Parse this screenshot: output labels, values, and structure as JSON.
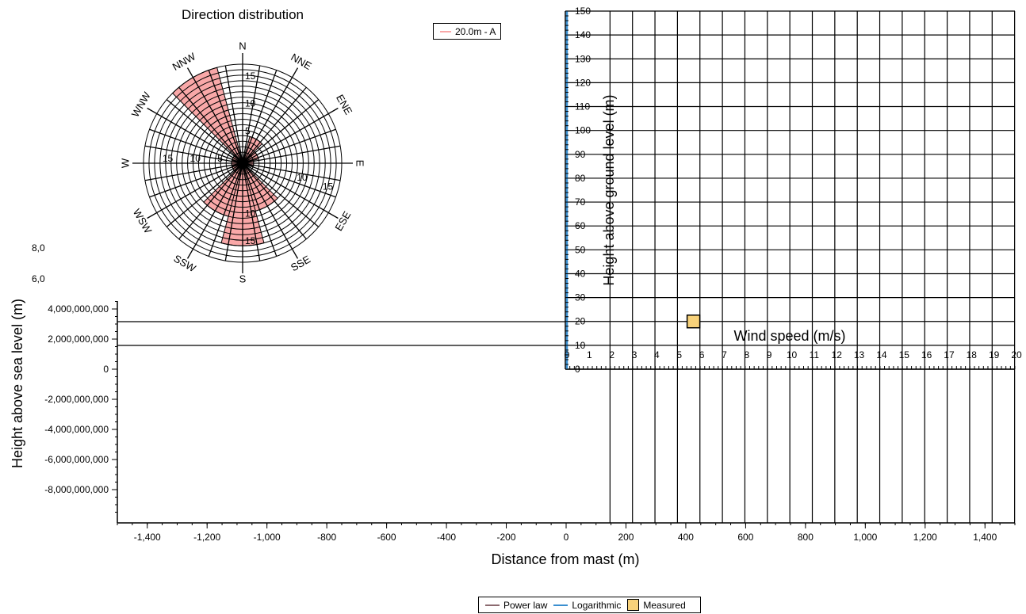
{
  "colors": {
    "rose_fill": "#F9A8A8",
    "logarithmic": "#3A8FD0",
    "power_law": "#8C6A6F",
    "measured_fill": "#F8D27A",
    "grid": "#000000"
  },
  "rose_legend": {
    "label": "20.0m - A"
  },
  "bottom_legend": {
    "power_law": "Power law",
    "logarithmic": "Logarithmic",
    "measured": "Measured"
  },
  "clipped_labels": {
    "top": "8,0",
    "second": "6,0"
  },
  "chart_data": [
    {
      "type": "scatter",
      "name": "terrain-profile",
      "title": "",
      "xlabel": "Distance from mast (m)",
      "ylabel": "Height above sea level (m)",
      "xlim": [
        -1500,
        1500
      ],
      "ylim": [
        -10000000000,
        4500000000
      ],
      "x_ticks": [
        -1400,
        -1200,
        -1000,
        -800,
        -600,
        -400,
        -200,
        0,
        200,
        400,
        600,
        800,
        1000,
        1200,
        1400
      ],
      "x_tick_labels": [
        "-1,400",
        "-1,200",
        "-1,000",
        "-800",
        "-600",
        "-400",
        "-200",
        "0",
        "200",
        "400",
        "600",
        "800",
        "1,000",
        "1,200",
        "1,400"
      ],
      "y_ticks": [
        4000000000,
        2000000000,
        0,
        -2000000000,
        -4000000000,
        -6000000000,
        -8000000000
      ],
      "y_tick_labels": [
        "4,000,000,000",
        "2,000,000,000",
        "0",
        "-2,000,000,000",
        "-4,000,000,000",
        "-6,000,000,000",
        "-8,000,000,000"
      ],
      "horizontal_lines_y": [
        3000000000,
        2000000000
      ]
    },
    {
      "type": "scatter",
      "name": "wind-profile",
      "title": "",
      "xlabel": "Wind speed (m/s)",
      "ylabel": "Height above ground level (m)",
      "xlim": [
        0,
        20
      ],
      "ylim": [
        0,
        150
      ],
      "x_ticks": [
        0,
        1,
        2,
        3,
        4,
        5,
        6,
        7,
        8,
        9,
        10,
        11,
        12,
        13,
        14,
        15,
        16,
        17,
        18,
        19,
        20
      ],
      "x_tick_labels": [
        "0",
        "1",
        "2",
        "3",
        "4",
        "5",
        "6",
        "7",
        "8",
        "9",
        "10",
        "11",
        "12",
        "13",
        "14",
        "15",
        "16",
        "17",
        "18",
        "19",
        "20"
      ],
      "y_ticks": [
        0,
        10,
        20,
        30,
        40,
        50,
        60,
        70,
        80,
        90,
        100,
        110,
        120,
        130,
        140,
        150
      ],
      "y_tick_labels": [
        "0",
        "10",
        "20",
        "30",
        "40",
        "50",
        "60",
        "70",
        "80",
        "90",
        "100",
        "110",
        "120",
        "130",
        "140",
        "150"
      ],
      "grid": true,
      "series": [
        {
          "name": "Measured",
          "x": [
            5.7
          ],
          "y": [
            20
          ]
        },
        {
          "name": "Logarithmic",
          "x": [
            0,
            0
          ],
          "y": [
            0,
            150
          ]
        }
      ]
    },
    {
      "type": "radar",
      "name": "direction-rose",
      "title": "Direction distribution",
      "directions": [
        "N",
        "NNE",
        "ENE",
        "E",
        "ESE",
        "SSE",
        "S",
        "SSW",
        "WSW",
        "W",
        "WNW",
        "NNW"
      ],
      "sector_angles_deg": [
        0,
        30,
        60,
        90,
        120,
        150,
        180,
        210,
        240,
        270,
        300,
        330
      ],
      "ring_values": [
        1,
        2,
        3,
        4,
        5,
        6,
        7,
        8,
        9,
        10,
        11,
        12,
        13,
        14,
        15,
        16,
        17,
        18
      ],
      "ring_labels": [
        {
          "text": "5",
          "bearing": 0,
          "r": 5
        },
        {
          "text": "10",
          "bearing": 0,
          "r": 10
        },
        {
          "text": "15",
          "bearing": 0,
          "r": 15
        },
        {
          "text": "5",
          "bearing": 270,
          "r": 5
        },
        {
          "text": "10",
          "bearing": 270,
          "r": 10
        },
        {
          "text": "15",
          "bearing": 270,
          "r": 15
        },
        {
          "text": "10",
          "bearing": 180,
          "r": 10
        },
        {
          "text": "15",
          "bearing": 180,
          "r": 15
        },
        {
          "text": "10",
          "bearing": 110,
          "r": 10
        },
        {
          "text": "15",
          "bearing": 110,
          "r": 15
        }
      ],
      "series": [
        {
          "name": "20.0m - A",
          "values": [
            1,
            5,
            3,
            2,
            1,
            9,
            15,
            10,
            2,
            2,
            2,
            18
          ]
        }
      ],
      "rmax": 18
    }
  ]
}
